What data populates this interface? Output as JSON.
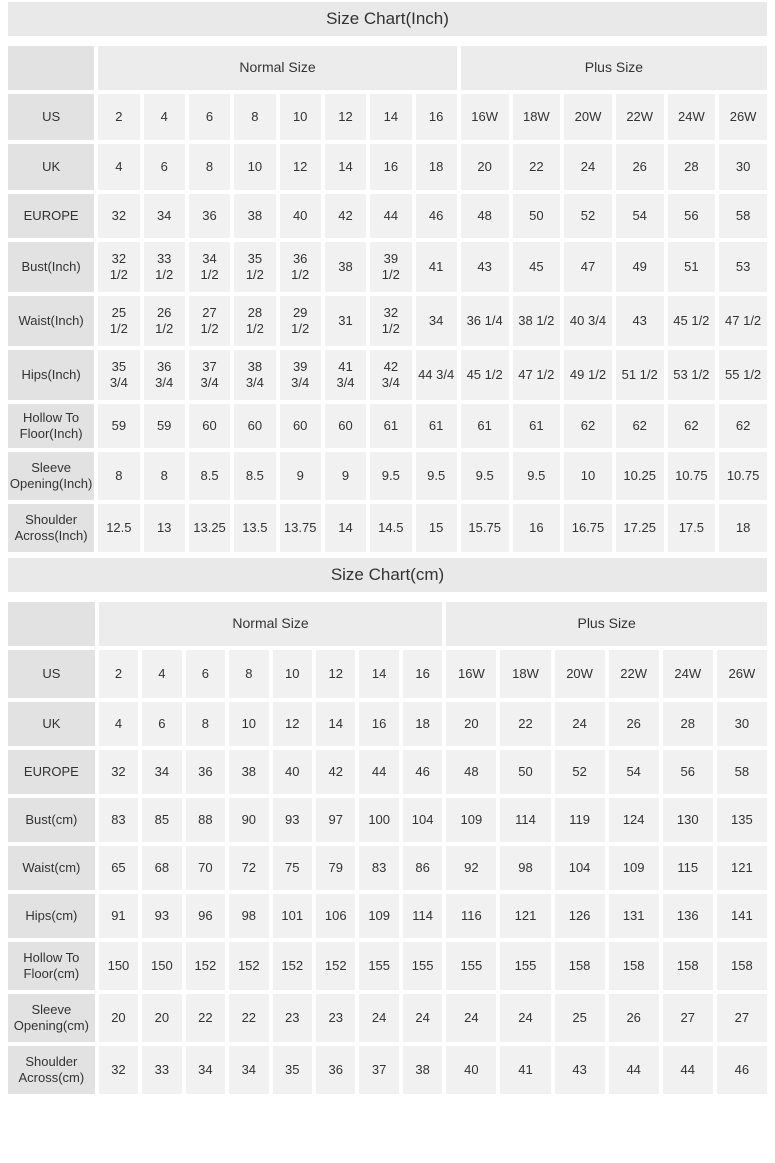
{
  "colors": {
    "title_bar_bg": "#e9e9e9",
    "row_label_bg": "#e2e2e2",
    "group_header_bg": "#ececec",
    "cell_bg": "#f1f1f1",
    "text": "#333333",
    "page_bg": "#ffffff"
  },
  "charts": [
    {
      "title": "Size Chart(Inch)",
      "group_headers": {
        "normal": "Normal Size",
        "plus": "Plus Size"
      },
      "normal_col_count": 8,
      "plus_col_count": 6,
      "rows": [
        {
          "label": "US",
          "values": [
            "2",
            "4",
            "6",
            "8",
            "10",
            "12",
            "14",
            "16",
            "16W",
            "18W",
            "20W",
            "22W",
            "24W",
            "26W"
          ]
        },
        {
          "label": "UK",
          "values": [
            "4",
            "6",
            "8",
            "10",
            "12",
            "14",
            "16",
            "18",
            "20",
            "22",
            "24",
            "26",
            "28",
            "30"
          ]
        },
        {
          "label": "EUROPE",
          "values": [
            "32",
            "34",
            "36",
            "38",
            "40",
            "42",
            "44",
            "46",
            "48",
            "50",
            "52",
            "54",
            "56",
            "58"
          ]
        },
        {
          "label": "Bust(Inch)",
          "values": [
            "32\n1/2",
            "33\n1/2",
            "34\n1/2",
            "35\n1/2",
            "36\n1/2",
            "38",
            "39\n1/2",
            "41",
            "43",
            "45",
            "47",
            "49",
            "51",
            "53"
          ]
        },
        {
          "label": "Waist(Inch)",
          "values": [
            "25\n1/2",
            "26\n1/2",
            "27\n1/2",
            "28\n1/2",
            "29\n1/2",
            "31",
            "32\n1/2",
            "34",
            "36 1/4",
            "38 1/2",
            "40 3/4",
            "43",
            "45 1/2",
            "47 1/2"
          ]
        },
        {
          "label": "Hips(Inch)",
          "values": [
            "35\n3/4",
            "36\n3/4",
            "37\n3/4",
            "38\n3/4",
            "39\n3/4",
            "41\n3/4",
            "42\n3/4",
            "44 3/4",
            "45 1/2",
            "47 1/2",
            "49 1/2",
            "51 1/2",
            "53 1/2",
            "55 1/2"
          ]
        },
        {
          "label": "Hollow To\nFloor(Inch)",
          "values": [
            "59",
            "59",
            "60",
            "60",
            "60",
            "60",
            "61",
            "61",
            "61",
            "61",
            "62",
            "62",
            "62",
            "62"
          ]
        },
        {
          "label": "Sleeve\nOpening(Inch)",
          "values": [
            "8",
            "8",
            "8.5",
            "8.5",
            "9",
            "9",
            "9.5",
            "9.5",
            "9.5",
            "9.5",
            "10",
            "10.25",
            "10.75",
            "10.75"
          ]
        },
        {
          "label": "Shoulder\nAcross(Inch)",
          "values": [
            "12.5",
            "13",
            "13.25",
            "13.5",
            "13.75",
            "14",
            "14.5",
            "15",
            "15.75",
            "16",
            "16.75",
            "17.25",
            "17.5",
            "18"
          ]
        }
      ]
    },
    {
      "title": "Size Chart(cm)",
      "group_headers": {
        "normal": "Normal Size",
        "plus": "Plus Size"
      },
      "normal_col_count": 8,
      "plus_col_count": 6,
      "rows": [
        {
          "label": "US",
          "values": [
            "2",
            "4",
            "6",
            "8",
            "10",
            "12",
            "14",
            "16",
            "16W",
            "18W",
            "20W",
            "22W",
            "24W",
            "26W"
          ]
        },
        {
          "label": "UK",
          "values": [
            "4",
            "6",
            "8",
            "10",
            "12",
            "14",
            "16",
            "18",
            "20",
            "22",
            "24",
            "26",
            "28",
            "30"
          ]
        },
        {
          "label": "EUROPE",
          "values": [
            "32",
            "34",
            "36",
            "38",
            "40",
            "42",
            "44",
            "46",
            "48",
            "50",
            "52",
            "54",
            "56",
            "58"
          ]
        },
        {
          "label": "Bust(cm)",
          "values": [
            "83",
            "85",
            "88",
            "90",
            "93",
            "97",
            "100",
            "104",
            "109",
            "114",
            "119",
            "124",
            "130",
            "135"
          ]
        },
        {
          "label": "Waist(cm)",
          "values": [
            "65",
            "68",
            "70",
            "72",
            "75",
            "79",
            "83",
            "86",
            "92",
            "98",
            "104",
            "109",
            "115",
            "121"
          ]
        },
        {
          "label": "Hips(cm)",
          "values": [
            "91",
            "93",
            "96",
            "98",
            "101",
            "106",
            "109",
            "114",
            "116",
            "121",
            "126",
            "131",
            "136",
            "141"
          ]
        },
        {
          "label": "Hollow To\nFloor(cm)",
          "values": [
            "150",
            "150",
            "152",
            "152",
            "152",
            "152",
            "155",
            "155",
            "155",
            "155",
            "158",
            "158",
            "158",
            "158"
          ]
        },
        {
          "label": "Sleeve\nOpening(cm)",
          "values": [
            "20",
            "20",
            "22",
            "22",
            "23",
            "23",
            "24",
            "24",
            "24",
            "24",
            "25",
            "26",
            "27",
            "27"
          ]
        },
        {
          "label": "Shoulder\nAcross(cm)",
          "values": [
            "32",
            "33",
            "34",
            "34",
            "35",
            "36",
            "37",
            "38",
            "40",
            "41",
            "43",
            "44",
            "44",
            "46"
          ]
        }
      ]
    }
  ]
}
